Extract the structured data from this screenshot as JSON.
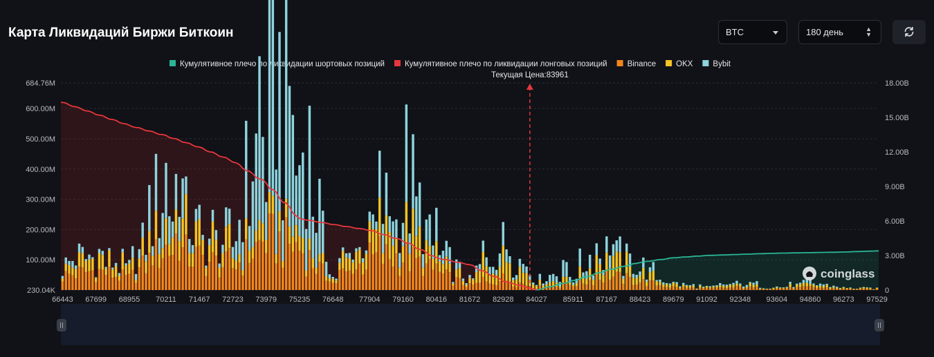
{
  "header": {
    "title": "Карта Ликвидаций Биржи Биткоин",
    "coin_select": "BTC",
    "period_select": "180 день"
  },
  "colors": {
    "short_cumulative": "#2bb596",
    "long_cumulative": "#e8363d",
    "binance": "#f2861c",
    "okx": "#f7c325",
    "bybit": "#8ed3dd",
    "current_price_marker": "#e8363d"
  },
  "watermark": "coinglass",
  "chart_data": {
    "type": "bar",
    "title": "",
    "current_price_label": "Текущая Цена:83961",
    "current_price": 83961,
    "legend": [
      {
        "key": "short_cumulative",
        "label": "Кумулятивное плечо по ликвидации шортовых позиций"
      },
      {
        "key": "long_cumulative",
        "label": "Кумулятивное плечо по ликвидации лонговых позиций"
      },
      {
        "key": "binance",
        "label": "Binance"
      },
      {
        "key": "okx",
        "label": "OKX"
      },
      {
        "key": "bybit",
        "label": "Bybit"
      }
    ],
    "x_tick_labels": [
      "66443",
      "67699",
      "68955",
      "70211",
      "71467",
      "72723",
      "73979",
      "75235",
      "76648",
      "77904",
      "79160",
      "80416",
      "81672",
      "82928",
      "84027",
      "85911",
      "87167",
      "88423",
      "89679",
      "91092",
      "92348",
      "93604",
      "94860",
      "96273",
      "97529"
    ],
    "y_left_tick_labels": [
      "684.76M",
      "600.00M",
      "500.00M",
      "400.00M",
      "300.00M",
      "200.00M",
      "100.00M",
      "230.04K"
    ],
    "y_left_range": [
      0,
      684.76
    ],
    "y_right_tick_labels": [
      "18.00B",
      "15.00B",
      "12.00B",
      "9.00B",
      "6.00B",
      "3.00B",
      "0"
    ],
    "y_right_range": [
      0,
      18
    ],
    "bar_count": 245,
    "current_price_index": 140,
    "stacked_bars_M": {
      "tick_markers": [
        {
          "x_label": "66443",
          "binance": 50,
          "okx": 30,
          "bybit": 20
        },
        {
          "x_label": "67699",
          "binance": 70,
          "okx": 40,
          "bybit": 10
        },
        {
          "x_label": "68955",
          "binance": 40,
          "okx": 25,
          "bybit": 15
        },
        {
          "x_label": "70211",
          "binance": 150,
          "okx": 80,
          "bybit": 130
        },
        {
          "x_label": "71467",
          "binance": 110,
          "okx": 70,
          "bybit": 30
        },
        {
          "x_label": "72723",
          "binance": 80,
          "okx": 40,
          "bybit": 40
        },
        {
          "x_label": "73979",
          "binance": 180,
          "okx": 50,
          "bybit": 400
        },
        {
          "x_label": "75235",
          "binance": 150,
          "okx": 50,
          "bybit": 350
        },
        {
          "x_label": "76648",
          "binance": 20,
          "okx": 10,
          "bybit": 5
        },
        {
          "x_label": "77904",
          "binance": 110,
          "okx": 70,
          "bybit": 20
        },
        {
          "x_label": "79160",
          "binance": 120,
          "okx": 80,
          "bybit": 170
        },
        {
          "x_label": "80416",
          "binance": 60,
          "okx": 40,
          "bybit": 50
        },
        {
          "x_label": "81672",
          "binance": 15,
          "okx": 10,
          "bybit": 5
        },
        {
          "x_label": "82928",
          "binance": 40,
          "okx": 100,
          "bybit": 40
        },
        {
          "x_label": "84027",
          "binance": 10,
          "okx": 20,
          "bybit": 10
        },
        {
          "x_label": "85911",
          "binance": 20,
          "okx": 10,
          "bybit": 30
        },
        {
          "x_label": "87167",
          "binance": 50,
          "okx": 60,
          "bybit": 40
        },
        {
          "x_label": "88423",
          "binance": 30,
          "okx": 30,
          "bybit": 20
        },
        {
          "x_label": "89679",
          "binance": 10,
          "okx": 8,
          "bybit": 5
        },
        {
          "x_label": "91092",
          "binance": 5,
          "okx": 3,
          "bybit": 2
        },
        {
          "x_label": "92348",
          "binance": 10,
          "okx": 8,
          "bybit": 7
        },
        {
          "x_label": "93604",
          "binance": 5,
          "okx": 3,
          "bybit": 2
        },
        {
          "x_label": "94860",
          "binance": 10,
          "okx": 8,
          "bybit": 7
        },
        {
          "x_label": "96273",
          "binance": 4,
          "okx": 3,
          "bybit": 1
        },
        {
          "x_label": "97529",
          "binance": 3,
          "okx": 2,
          "bybit": 1
        }
      ]
    },
    "long_cumulative_B": {
      "x_labels": [
        "66443",
        "67699",
        "68955",
        "70211",
        "71467",
        "72723",
        "73979",
        "75235",
        "76648",
        "77904",
        "79160",
        "80416",
        "81672",
        "82928",
        "84027"
      ],
      "values": [
        16.3,
        15.3,
        14.3,
        13.4,
        12.4,
        11.2,
        9.3,
        6.2,
        5.7,
        5.2,
        4.3,
        2.8,
        2.2,
        0.8,
        0
      ]
    },
    "short_cumulative_B": {
      "x_labels": [
        "84027",
        "85911",
        "87167",
        "88423",
        "89679",
        "91092",
        "92348",
        "93604",
        "94860",
        "96273",
        "97529"
      ],
      "values": [
        0,
        0.8,
        1.7,
        2.4,
        2.8,
        3.0,
        3.1,
        3.2,
        3.25,
        3.3,
        3.4
      ]
    }
  }
}
